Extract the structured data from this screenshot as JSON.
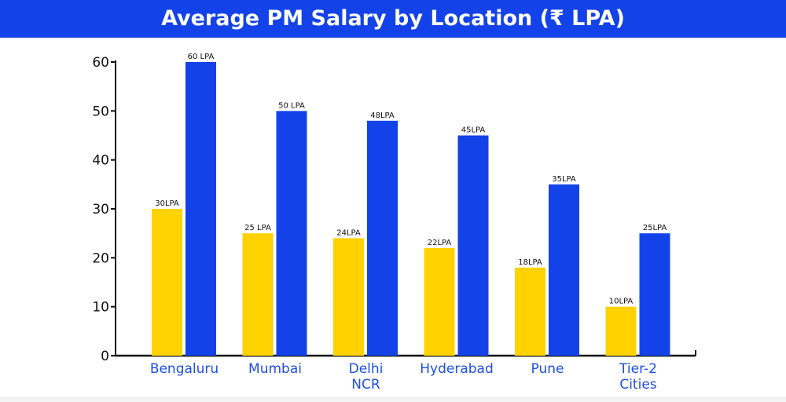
{
  "chart_data": {
    "type": "bar",
    "title": "Average PM Salary by Location (₹ LPA)",
    "xlabel": "",
    "ylabel": "",
    "ylim": [
      0,
      60
    ],
    "yticks": [
      0,
      10,
      20,
      30,
      40,
      50,
      60
    ],
    "grid": false,
    "categories": [
      [
        "Bengaluru"
      ],
      [
        "Mumbai"
      ],
      [
        "Delhi",
        "NCR"
      ],
      [
        "Hyderabad"
      ],
      [
        "Pune"
      ],
      [
        "Tier-2",
        "Cities"
      ]
    ],
    "series": [
      {
        "name": "Series 1",
        "color": "#ffd200",
        "values": [
          30,
          25,
          24,
          22,
          18,
          10
        ],
        "labels": [
          "30LPA",
          "25 LPA",
          "24LPA",
          "22LPA",
          "18LPA",
          "10LPA"
        ]
      },
      {
        "name": "Series 2",
        "color": "#1343e8",
        "values": [
          60,
          50,
          48,
          45,
          35,
          25
        ],
        "labels": [
          "60 LPA",
          "50 LPA",
          "48LPA",
          "45LPA",
          "35LPA",
          "25LPA"
        ]
      }
    ]
  }
}
